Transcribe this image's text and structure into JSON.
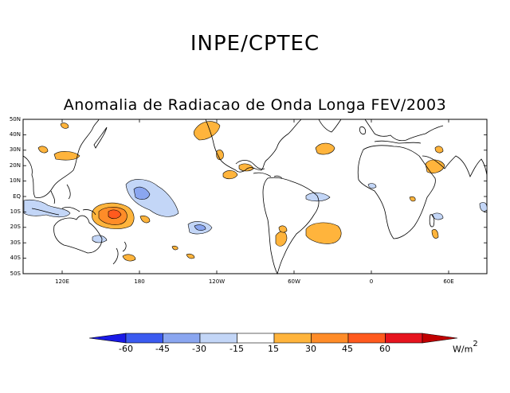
{
  "header": {
    "organization": "INPE/CPTEC"
  },
  "map": {
    "title": "Anomalia de Radiacao de Onda Longa FEV/2003",
    "lat_labels": [
      "50N",
      "40N",
      "30N",
      "20N",
      "10N",
      "EQ",
      "10S",
      "20S",
      "30S",
      "40S",
      "50S"
    ],
    "lon_labels": [
      "120E",
      "180",
      "120W",
      "60W",
      "0",
      "60E"
    ]
  },
  "colorbar": {
    "labels": [
      "-60",
      "-45",
      "-30",
      "-15",
      "15",
      "30",
      "45",
      "60"
    ],
    "colors": [
      "#1a1ae6",
      "#3b5bf0",
      "#8aa6f0",
      "#c3d6f7",
      "#ffffff",
      "#ffb43c",
      "#ff8c28",
      "#ff5a1e",
      "#e6141e",
      "#c00000"
    ],
    "unit_base": "W/m",
    "unit_power": "2"
  },
  "colors": {
    "negative_light": "#c3d6f7",
    "negative_mid": "#8aa6f0",
    "positive_light": "#ffb43c",
    "positive_mid": "#ff8c28",
    "positive_strong": "#ff5a1e"
  }
}
